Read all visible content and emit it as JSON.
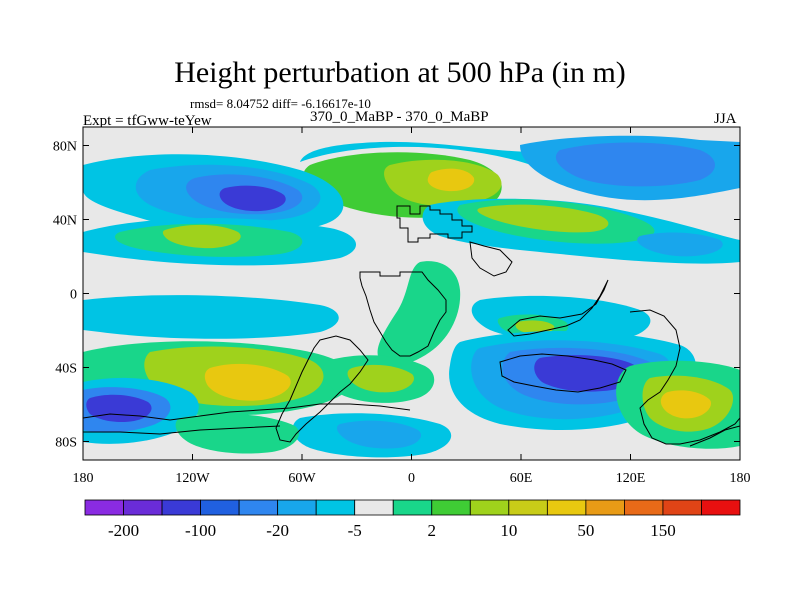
{
  "header": {
    "title": "Height perturbation at 500 hPa (in m)",
    "stats": "rmsd= 8.04752 diff= -6.16617e-10",
    "experiment": "Expt = tfGww-teYew",
    "runs": "370_0_MaBP - 370_0_MaBP",
    "season": "JJA"
  },
  "chart_data": {
    "type": "heatmap",
    "title": "Height perturbation at 500 hPa (in m)",
    "x_ticks": [
      "180",
      "120W",
      "60W",
      "0",
      "60E",
      "120E",
      "180"
    ],
    "x_tick_values": [
      -180,
      -120,
      -60,
      0,
      60,
      120,
      180
    ],
    "y_ticks": [
      "80N",
      "40N",
      "0",
      "40S",
      "80S"
    ],
    "y_tick_values": [
      80,
      40,
      0,
      -40,
      -80
    ],
    "xlim": [
      -180,
      180
    ],
    "ylim": [
      -90,
      90
    ],
    "colorbar": {
      "labels": [
        "-200",
        "-100",
        "-20",
        "-5",
        "2",
        "10",
        "50",
        "150"
      ],
      "colors": [
        "#8a2be2",
        "#6a2cd8",
        "#3a3ad6",
        "#2060e0",
        "#2f86ef",
        "#18a6ec",
        "#00c4e4",
        "#e8e8e8",
        "#19d68a",
        "#3fcc35",
        "#9fd21c",
        "#c8cc18",
        "#e8c810",
        "#e89b16",
        "#e86a18",
        "#e04416",
        "#e81010"
      ]
    }
  }
}
